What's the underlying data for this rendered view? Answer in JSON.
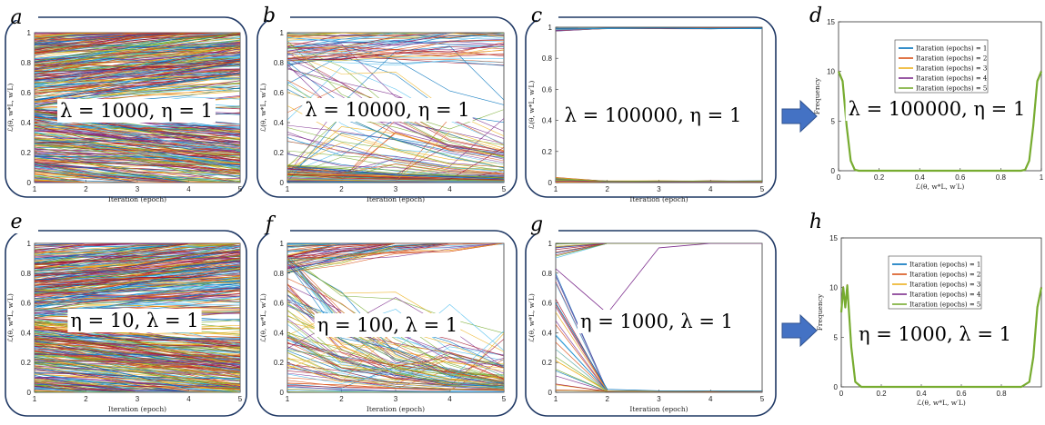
{
  "panels": [
    {
      "letter": "a",
      "kind": "lines",
      "mode": "dense",
      "label": "λ = 1000, η = 1",
      "xlabel": "Iteration (epoch)",
      "ylabel": "ℒ(θ, w*L, w′L)"
    },
    {
      "letter": "b",
      "kind": "lines",
      "mode": "medium",
      "label": "λ = 10000, η = 1",
      "xlabel": "Iteration (epoch)",
      "ylabel": "ℒ(θ, w*L, w′L)"
    },
    {
      "letter": "c",
      "kind": "lines",
      "mode": "converged",
      "label": "λ = 100000, η = 1",
      "xlabel": "Iteration (epoch)",
      "ylabel": "ℒ(θ, w*L, w′L)"
    },
    {
      "letter": "d",
      "kind": "hist",
      "variant": "top",
      "label": "λ = 100000, η = 1",
      "xlabel": "ℒ(θ, w*L, w′L)",
      "ylabel": "Frequency"
    },
    {
      "letter": "e",
      "kind": "lines",
      "mode": "dense",
      "label": "η = 10, λ = 1",
      "xlabel": "Iteration (epoch)",
      "ylabel": "ℒ(θ, w*L, w′L)"
    },
    {
      "letter": "f",
      "kind": "lines",
      "mode": "spread",
      "label": "η = 100, λ = 1",
      "xlabel": "Iteration (epoch)",
      "ylabel": "ℒ(θ, w*L, w′L)"
    },
    {
      "letter": "g",
      "kind": "lines",
      "mode": "sparse",
      "label": "η = 1000, λ = 1",
      "xlabel": "Iteration (epoch)",
      "ylabel": "ℒ(θ, w*L, w′L)"
    },
    {
      "letter": "h",
      "kind": "hist",
      "variant": "bottom",
      "label": "η = 1000, λ = 1",
      "xlabel": "ℒ(θ, w*L, w′L)",
      "ylabel": "Frequency"
    }
  ],
  "legend": [
    "Itaration (epochs) = 1",
    "Itaration (epochs) = 2",
    "Itaration (epochs) = 3",
    "Itaration (epochs) = 4",
    "Itaration (epochs) = 5"
  ],
  "colors": {
    "frame": "#1f3864",
    "arrow": "#4472c4",
    "series": [
      "#0072bd",
      "#d95319",
      "#edb120",
      "#7e2f8e",
      "#77ac30",
      "#4dbeee",
      "#a2142f"
    ]
  },
  "chart_data": [
    {
      "type": "line",
      "panel": "a",
      "xlabel": "Iteration (epoch)",
      "xlim": [
        1,
        5
      ],
      "ylim": [
        0,
        1
      ],
      "xticks": [
        1,
        2,
        3,
        4,
        5
      ],
      "yticks": [
        0,
        0.2,
        0.4,
        0.6,
        0.8,
        1
      ],
      "x": [
        1,
        2,
        3,
        4,
        5
      ]
    },
    {
      "type": "line",
      "panel": "b",
      "xlabel": "Iteration (epoch)",
      "xlim": [
        1,
        5
      ],
      "ylim": [
        0,
        1
      ],
      "xticks": [
        1,
        2,
        3,
        4,
        5
      ],
      "yticks": [
        0,
        0.2,
        0.4,
        0.6,
        0.8,
        1
      ],
      "x": [
        1,
        2,
        3,
        4,
        5
      ]
    },
    {
      "type": "line",
      "panel": "c",
      "xlabel": "Iteration (epoch)",
      "xlim": [
        1,
        5
      ],
      "ylim": [
        0,
        1
      ],
      "xticks": [
        1,
        2,
        3,
        4,
        5
      ],
      "yticks": [
        0,
        0.2,
        0.4,
        0.6,
        0.8,
        1
      ],
      "x": [
        1,
        2,
        3,
        4,
        5
      ]
    },
    {
      "type": "line",
      "panel": "d",
      "xlim": [
        0,
        1
      ],
      "ylim": [
        0,
        15
      ],
      "xticks": [
        0,
        0.2,
        0.4,
        0.6,
        0.8,
        1
      ],
      "yticks": [
        0,
        5,
        10,
        15
      ],
      "x": [
        0,
        0.02,
        0.04,
        0.06,
        0.08,
        0.1,
        0.2,
        0.4,
        0.6,
        0.8,
        0.9,
        0.92,
        0.94,
        0.96,
        0.98,
        1
      ],
      "series": [
        {
          "name": "Itaration (epochs) = 5",
          "values": [
            10,
            9,
            4.5,
            1,
            0.1,
            0,
            0,
            0,
            0,
            0,
            0,
            0.1,
            1,
            4.5,
            9,
            10
          ]
        }
      ]
    },
    {
      "type": "line",
      "panel": "e",
      "xlabel": "Iteration (epoch)",
      "xlim": [
        1,
        5
      ],
      "ylim": [
        0,
        1
      ],
      "xticks": [
        1,
        2,
        3,
        4,
        5
      ],
      "yticks": [
        0,
        0.2,
        0.4,
        0.6,
        0.8,
        1
      ],
      "x": [
        1,
        2,
        3,
        4,
        5
      ]
    },
    {
      "type": "line",
      "panel": "f",
      "xlabel": "Iteration (epoch)",
      "xlim": [
        1,
        5
      ],
      "ylim": [
        0,
        1
      ],
      "xticks": [
        1,
        2,
        3,
        4,
        5
      ],
      "yticks": [
        0,
        0.2,
        0.4,
        0.6,
        0.8,
        1
      ],
      "x": [
        1,
        2,
        3,
        4,
        5
      ]
    },
    {
      "type": "line",
      "panel": "g",
      "xlabel": "Iteration (epoch)",
      "xlim": [
        1,
        5
      ],
      "ylim": [
        0,
        1
      ],
      "xticks": [
        1,
        2,
        3,
        4,
        5
      ],
      "yticks": [
        0,
        0.2,
        0.4,
        0.6,
        0.8,
        1
      ],
      "x": [
        1,
        2,
        3,
        4,
        5
      ]
    },
    {
      "type": "line",
      "panel": "h",
      "xlim": [
        0,
        1
      ],
      "ylim": [
        0,
        15
      ],
      "xticks": [
        0,
        0.2,
        0.4,
        0.6,
        0.8
      ],
      "yticks": [
        0,
        5,
        10,
        15
      ],
      "x": [
        0,
        0.01,
        0.02,
        0.03,
        0.05,
        0.07,
        0.1,
        0.2,
        0.4,
        0.6,
        0.8,
        0.9,
        0.94,
        0.96,
        0.98,
        1
      ],
      "series": [
        {
          "name": "Itaration (epochs) = 5",
          "values": [
            7.5,
            10,
            8,
            10.2,
            4,
            0.5,
            0,
            0,
            0,
            0,
            0,
            0,
            0.5,
            3,
            8,
            10
          ]
        }
      ]
    }
  ]
}
